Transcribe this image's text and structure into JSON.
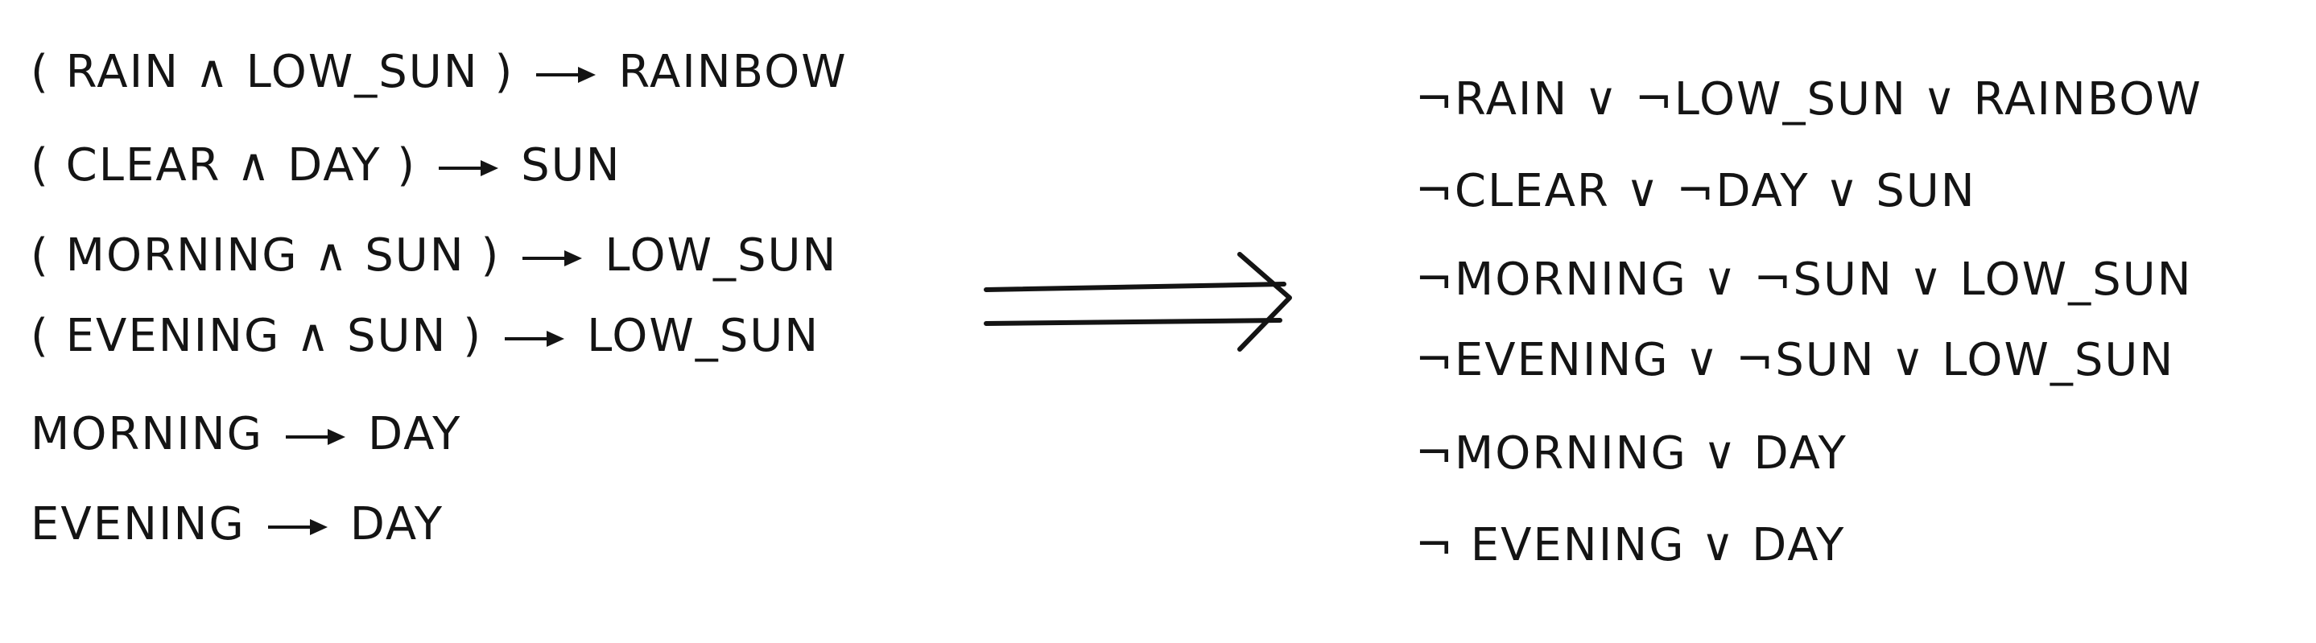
{
  "left_rules": [
    {
      "antecedent": "( RAIN ∧ LOW_SUN )",
      "consequent": "RAINBOW"
    },
    {
      "antecedent": "( CLEAR ∧ DAY )",
      "consequent": "SUN"
    },
    {
      "antecedent": "( MORNING ∧ SUN )",
      "consequent": "LOW_SUN"
    },
    {
      "antecedent": "( EVENING ∧ SUN )",
      "consequent": "LOW_SUN"
    },
    {
      "antecedent": "MORNING",
      "consequent": "DAY"
    },
    {
      "antecedent": "EVENING",
      "consequent": "DAY"
    }
  ],
  "right_clauses": [
    "¬RAIN  ∨  ¬LOW_SUN ∨ RAINBOW",
    "¬CLEAR ∨  ¬DAY ∨ SUN",
    "¬MORNING  ∨  ¬SUN ∨ LOW_SUN",
    "¬EVENING  ∨  ¬SUN ∨ LOW_SUN",
    "¬MORNING ∨ DAY",
    "¬ EVENING ∨ DAY"
  ]
}
